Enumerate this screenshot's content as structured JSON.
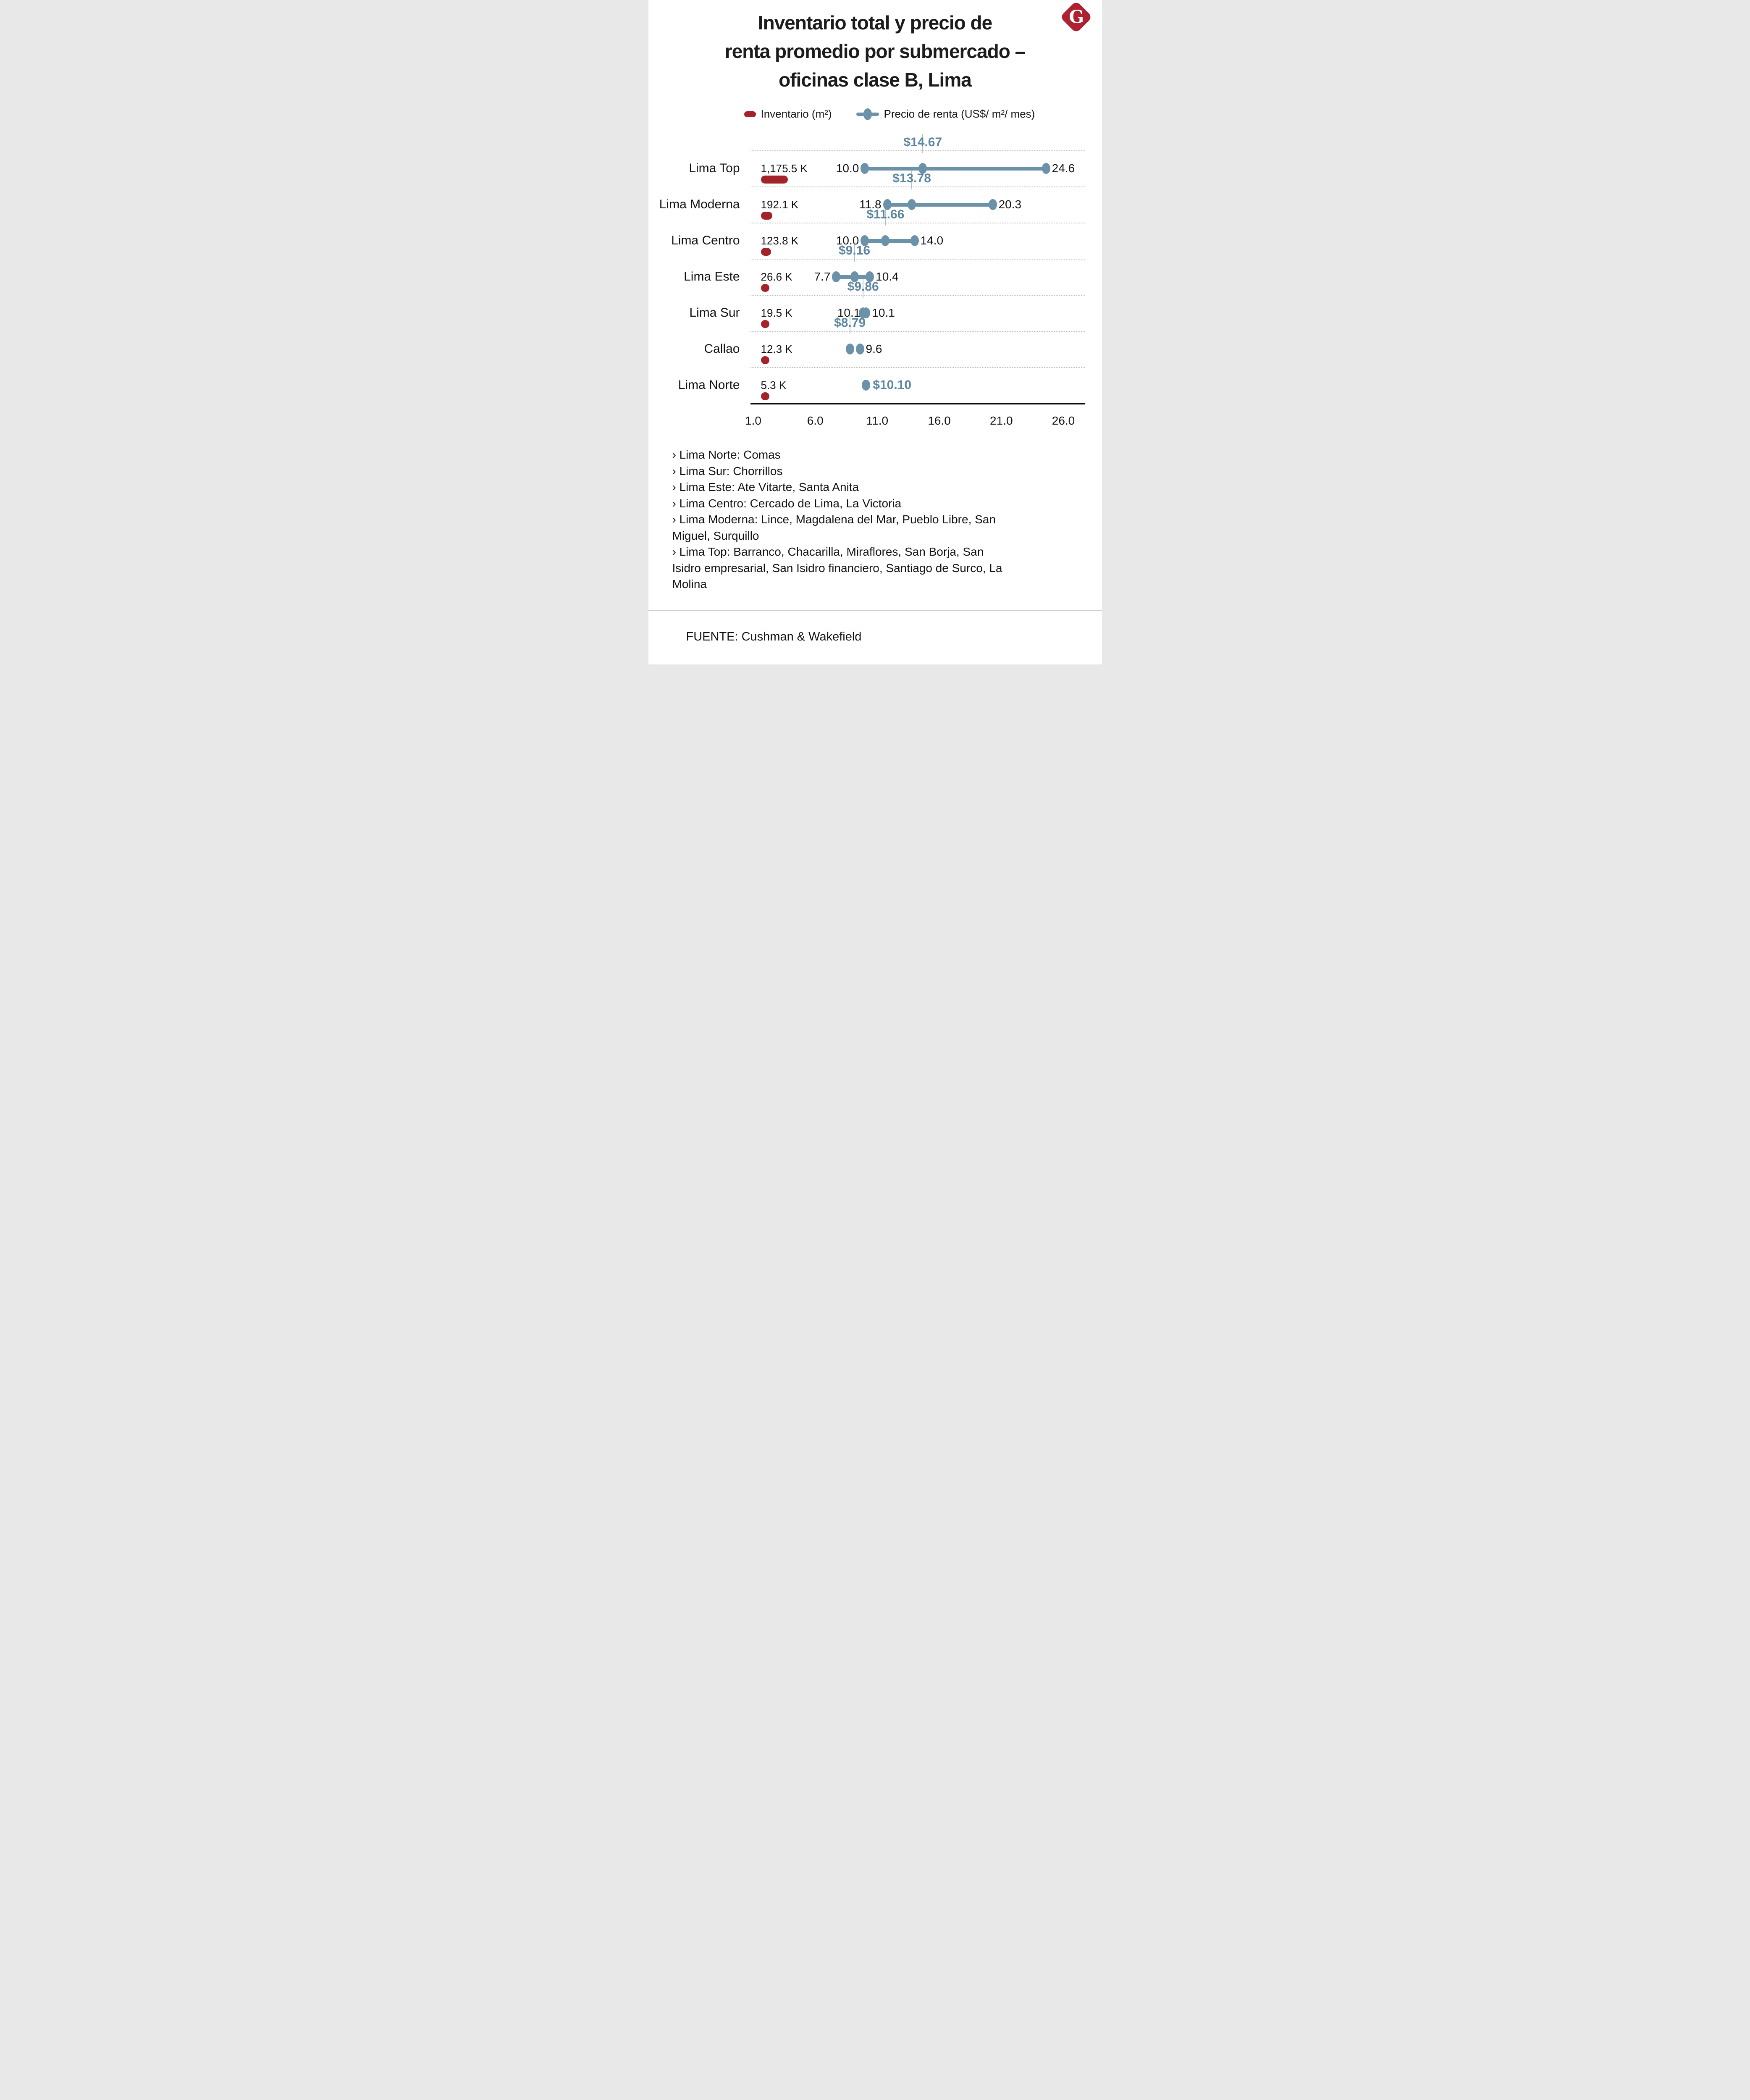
{
  "title": {
    "line1": "Inventario total y precio de",
    "line2": "renta promedio por submercado –",
    "line3": "oficinas clase B, Lima"
  },
  "logo": {
    "letter": "G"
  },
  "legend": {
    "inventory_label": "Inventario (m²)",
    "price_label": "Precio de renta (US$/ m²/ mes)"
  },
  "colors": {
    "inventory": "#a4232a",
    "logo": "#ad2130",
    "price_dot": "#6b92a8",
    "price_label": "#5d87a1",
    "grid": "#bdbdbd",
    "axis": "#0d0d0d",
    "text": "#111111"
  },
  "chart_data": {
    "type": "dumbbell",
    "title": "Inventario total y precio de renta promedio por submercado – oficinas clase B, Lima",
    "categories": [
      "Lima Top",
      "Lima Moderna",
      "Lima Centro",
      "Lima Este",
      "Lima Sur",
      "Callao",
      "Lima Norte"
    ],
    "series": [
      {
        "name": "Inventario (m²)",
        "unit": "thousands of m²",
        "values": [
          1175.5,
          192.1,
          123.8,
          26.6,
          19.5,
          12.3,
          5.3
        ],
        "value_labels": [
          "1,175.5 K",
          "192.1 K",
          "123.8 K",
          "26.6 K",
          "19.5 K",
          "12.3 K",
          "5.3 K"
        ]
      },
      {
        "name": "Precio de renta (US$/ m²/ mes)",
        "min": [
          10.0,
          11.8,
          10.0,
          7.7,
          10.1,
          null,
          null
        ],
        "avg": [
          14.67,
          13.78,
          11.66,
          9.16,
          9.86,
          8.79,
          10.1
        ],
        "max": [
          24.6,
          20.3,
          14.0,
          10.4,
          10.1,
          9.6,
          null
        ],
        "min_labels": [
          "10.0",
          "11.8",
          "10.0",
          "7.7",
          "10.1",
          "",
          ""
        ],
        "avg_labels": [
          "$14.67",
          "$13.78",
          "$11.66",
          "$9.16",
          "$9.86",
          "$8.79",
          "$10.10"
        ],
        "max_labels": [
          "24.6",
          "20.3",
          "14.0",
          "10.4",
          "10.1",
          "9.6",
          ""
        ],
        "avg_label_position": [
          "above",
          "above",
          "above",
          "above",
          "above",
          "above",
          "right"
        ]
      }
    ],
    "x_axis": {
      "min": 1.0,
      "max": 26.0,
      "ticks": [
        1.0,
        6.0,
        11.0,
        16.0,
        21.0,
        26.0
      ],
      "tick_labels": [
        "1.0",
        "6.0",
        "11.0",
        "16.0",
        "21.0",
        "26.0"
      ]
    },
    "legend_position": "top",
    "grid": "dotted-horizontal"
  },
  "footnotes": [
    "› Lima Norte: Comas",
    "› Lima Sur: Chorrillos",
    "› Lima Este: Ate Vitarte, Santa Anita",
    "› Lima Centro: Cercado de Lima, La Victoria",
    "› Lima Moderna: Lince, Magdalena del Mar, Pueblo Libre, San Miguel, Surquillo",
    "› Lima Top: Barranco, Chacarilla, Miraflores, San Borja, San Isidro empresarial, San Isidro financiero, Santiago de Surco, La Molina"
  ],
  "source": "FUENTE: Cushman & Wakefield"
}
